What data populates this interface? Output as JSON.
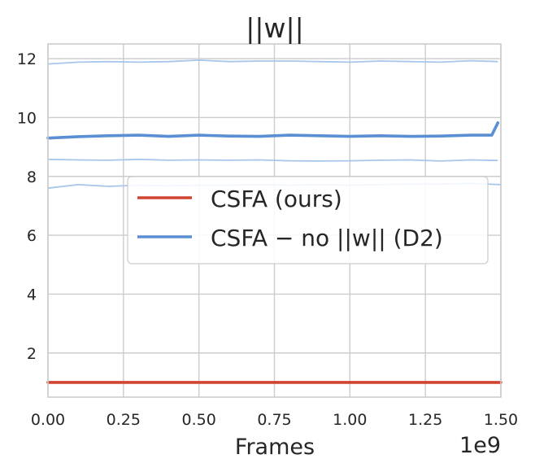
{
  "chart_data": {
    "type": "line",
    "title": "||w||",
    "xlabel": "Frames",
    "ylabel": "",
    "x_offset_label": "1e9",
    "xlim": [
      0.0,
      1.5
    ],
    "ylim": [
      0.5,
      12.5
    ],
    "xticks": [
      0.0,
      0.25,
      0.5,
      0.75,
      1.0,
      1.25,
      1.5
    ],
    "xtick_labels": [
      "0.00",
      "0.25",
      "0.50",
      "0.75",
      "1.00",
      "1.25",
      "1.50"
    ],
    "yticks": [
      2,
      4,
      6,
      8,
      10,
      12
    ],
    "ytick_labels": [
      "2",
      "4",
      "6",
      "8",
      "10",
      "12"
    ],
    "grid": true,
    "legend_position": "center-right",
    "series": [
      {
        "name": "CSFA (ours)",
        "color": "#d24432",
        "x": [
          0.0,
          1.5
        ],
        "values": [
          1.0,
          1.0
        ]
      },
      {
        "name": "CSFA − no ||w|| (D2)",
        "color": "#5b8fd4",
        "x": [
          0.0,
          0.1,
          0.2,
          0.3,
          0.4,
          0.5,
          0.6,
          0.7,
          0.8,
          0.9,
          1.0,
          1.1,
          1.2,
          1.3,
          1.4,
          1.47,
          1.49
        ],
        "values": [
          9.3,
          9.35,
          9.38,
          9.4,
          9.36,
          9.4,
          9.37,
          9.36,
          9.4,
          9.38,
          9.36,
          9.38,
          9.36,
          9.37,
          9.4,
          9.4,
          9.82
        ]
      }
    ],
    "faint_runs": [
      {
        "color": "#a7c6ea",
        "x": [
          0.0,
          0.1,
          0.2,
          0.3,
          0.4,
          0.5,
          0.6,
          0.7,
          0.8,
          0.9,
          1.0,
          1.1,
          1.2,
          1.3,
          1.4,
          1.49
        ],
        "values": [
          11.82,
          11.88,
          11.9,
          11.88,
          11.9,
          11.95,
          11.9,
          11.92,
          11.92,
          11.9,
          11.88,
          11.92,
          11.9,
          11.88,
          11.93,
          11.9
        ]
      },
      {
        "color": "#a7c6ea",
        "x": [
          0.0,
          0.1,
          0.2,
          0.3,
          0.4,
          0.5,
          0.6,
          0.7,
          0.8,
          0.9,
          1.0,
          1.1,
          1.2,
          1.3,
          1.4,
          1.49
        ],
        "values": [
          8.58,
          8.56,
          8.55,
          8.58,
          8.55,
          8.56,
          8.55,
          8.56,
          8.53,
          8.52,
          8.53,
          8.55,
          8.56,
          8.52,
          8.56,
          8.54
        ]
      },
      {
        "color": "#a7c6ea",
        "x": [
          0.0,
          0.1,
          0.2,
          0.3,
          0.4,
          0.5,
          0.6,
          0.7,
          0.8,
          0.9,
          1.0,
          1.1,
          1.2,
          1.3,
          1.4,
          1.5
        ],
        "values": [
          7.6,
          7.72,
          7.66,
          7.7,
          7.68,
          7.7,
          7.7,
          7.72,
          7.7,
          7.72,
          7.7,
          7.72,
          7.74,
          7.74,
          7.76,
          7.72
        ]
      }
    ]
  }
}
